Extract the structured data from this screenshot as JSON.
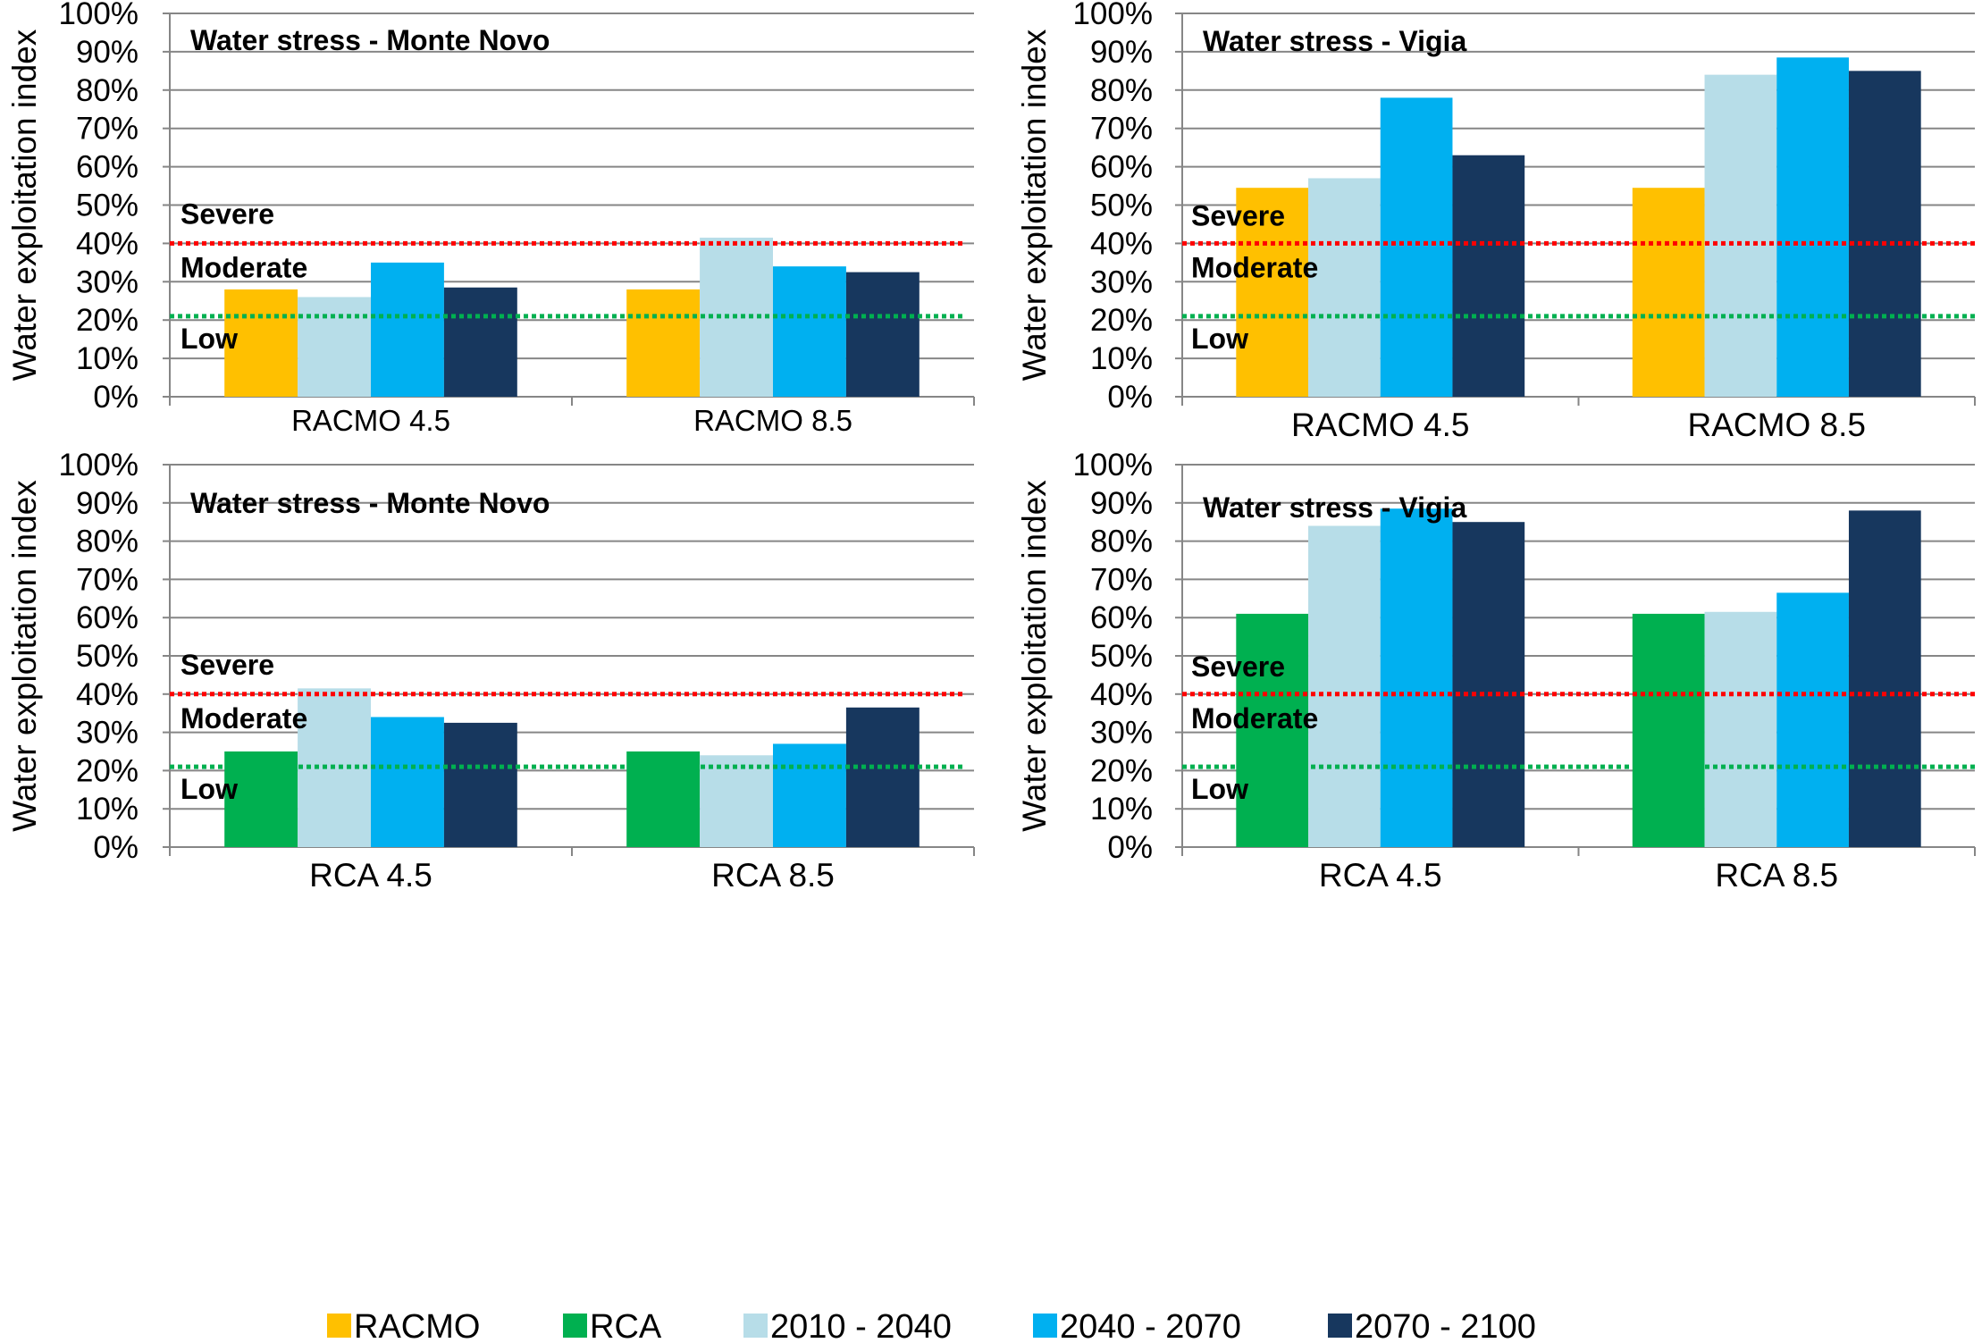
{
  "legend": [
    {
      "label": "RACMO",
      "color": "#FFC000"
    },
    {
      "label": "RCA",
      "color": "#00B050"
    },
    {
      "label": "2010 - 2040",
      "color": "#B7DDE8"
    },
    {
      "label": "2040 - 2070",
      "color": "#00B0F0"
    },
    {
      "label": "2070 - 2100",
      "color": "#17375E"
    }
  ],
  "zone_labels": {
    "severe": "Severe",
    "moderate": "Moderate",
    "low": "Low"
  },
  "threshold_colors": {
    "severe": "#FF0000",
    "low": "#00B050"
  },
  "chart_data": [
    {
      "type": "bar",
      "title": "Water stress - Monte Novo",
      "ylabel": "Water exploitation index",
      "ylim": [
        0,
        100
      ],
      "yticks": [
        "0%",
        "10%",
        "20%",
        "30%",
        "40%",
        "50%",
        "60%",
        "70%",
        "80%",
        "90%",
        "100%"
      ],
      "categories": [
        "RACMO 4.5",
        "RACMO 8.5"
      ],
      "thresholds": [
        40,
        21
      ],
      "series": [
        {
          "name": "RACMO",
          "color": "#FFC000",
          "values": [
            28,
            28
          ]
        },
        {
          "name": "2010 - 2040",
          "color": "#B7DDE8",
          "values": [
            26,
            41.5
          ]
        },
        {
          "name": "2040 - 2070",
          "color": "#00B0F0",
          "values": [
            35,
            34
          ]
        },
        {
          "name": "2070 - 2100",
          "color": "#17375E",
          "values": [
            28.5,
            32.5
          ]
        }
      ]
    },
    {
      "type": "bar",
      "title": "Water stress - Vigia",
      "ylabel": "Water exploitation index",
      "ylim": [
        0,
        100
      ],
      "yticks": [
        "0%",
        "10%",
        "20%",
        "30%",
        "40%",
        "50%",
        "60%",
        "70%",
        "80%",
        "90%",
        "100%"
      ],
      "categories": [
        "RACMO 4.5",
        "RACMO 8.5"
      ],
      "thresholds": [
        40,
        21
      ],
      "series": [
        {
          "name": "RACMO",
          "color": "#FFC000",
          "values": [
            54.5,
            54.5
          ]
        },
        {
          "name": "2010 - 2040",
          "color": "#B7DDE8",
          "values": [
            57,
            84
          ]
        },
        {
          "name": "2040 - 2070",
          "color": "#00B0F0",
          "values": [
            78,
            88.5
          ]
        },
        {
          "name": "2070 - 2100",
          "color": "#17375E",
          "values": [
            63,
            85
          ]
        }
      ]
    },
    {
      "type": "bar",
      "title": "Water stress - Monte Novo",
      "ylabel": "Water exploitation index",
      "ylim": [
        0,
        100
      ],
      "yticks": [
        "0%",
        "10%",
        "20%",
        "30%",
        "40%",
        "50%",
        "60%",
        "70%",
        "80%",
        "90%",
        "100%"
      ],
      "categories": [
        "RCA 4.5",
        "RCA 8.5"
      ],
      "thresholds": [
        40,
        21
      ],
      "series": [
        {
          "name": "RCA",
          "color": "#00B050",
          "values": [
            25,
            25
          ]
        },
        {
          "name": "2010 - 2040",
          "color": "#B7DDE8",
          "values": [
            41.5,
            24
          ]
        },
        {
          "name": "2040 - 2070",
          "color": "#00B0F0",
          "values": [
            34,
            27
          ]
        },
        {
          "name": "2070 - 2100",
          "color": "#17375E",
          "values": [
            32.5,
            36.5
          ]
        }
      ]
    },
    {
      "type": "bar",
      "title": "Water stress - Vigia",
      "ylabel": "Water exploitation index",
      "ylim": [
        0,
        100
      ],
      "yticks": [
        "0%",
        "10%",
        "20%",
        "30%",
        "40%",
        "50%",
        "60%",
        "70%",
        "80%",
        "90%",
        "100%"
      ],
      "categories": [
        "RCA 4.5",
        "RCA 8.5"
      ],
      "thresholds": [
        40,
        21
      ],
      "series": [
        {
          "name": "RCA",
          "color": "#00B050",
          "values": [
            61,
            61
          ]
        },
        {
          "name": "2010 - 2040",
          "color": "#B7DDE8",
          "values": [
            84,
            61.5
          ]
        },
        {
          "name": "2040 - 2070",
          "color": "#00B0F0",
          "values": [
            88.5,
            66.5
          ]
        },
        {
          "name": "2070 - 2100",
          "color": "#17375E",
          "values": [
            85,
            88
          ]
        }
      ]
    }
  ]
}
